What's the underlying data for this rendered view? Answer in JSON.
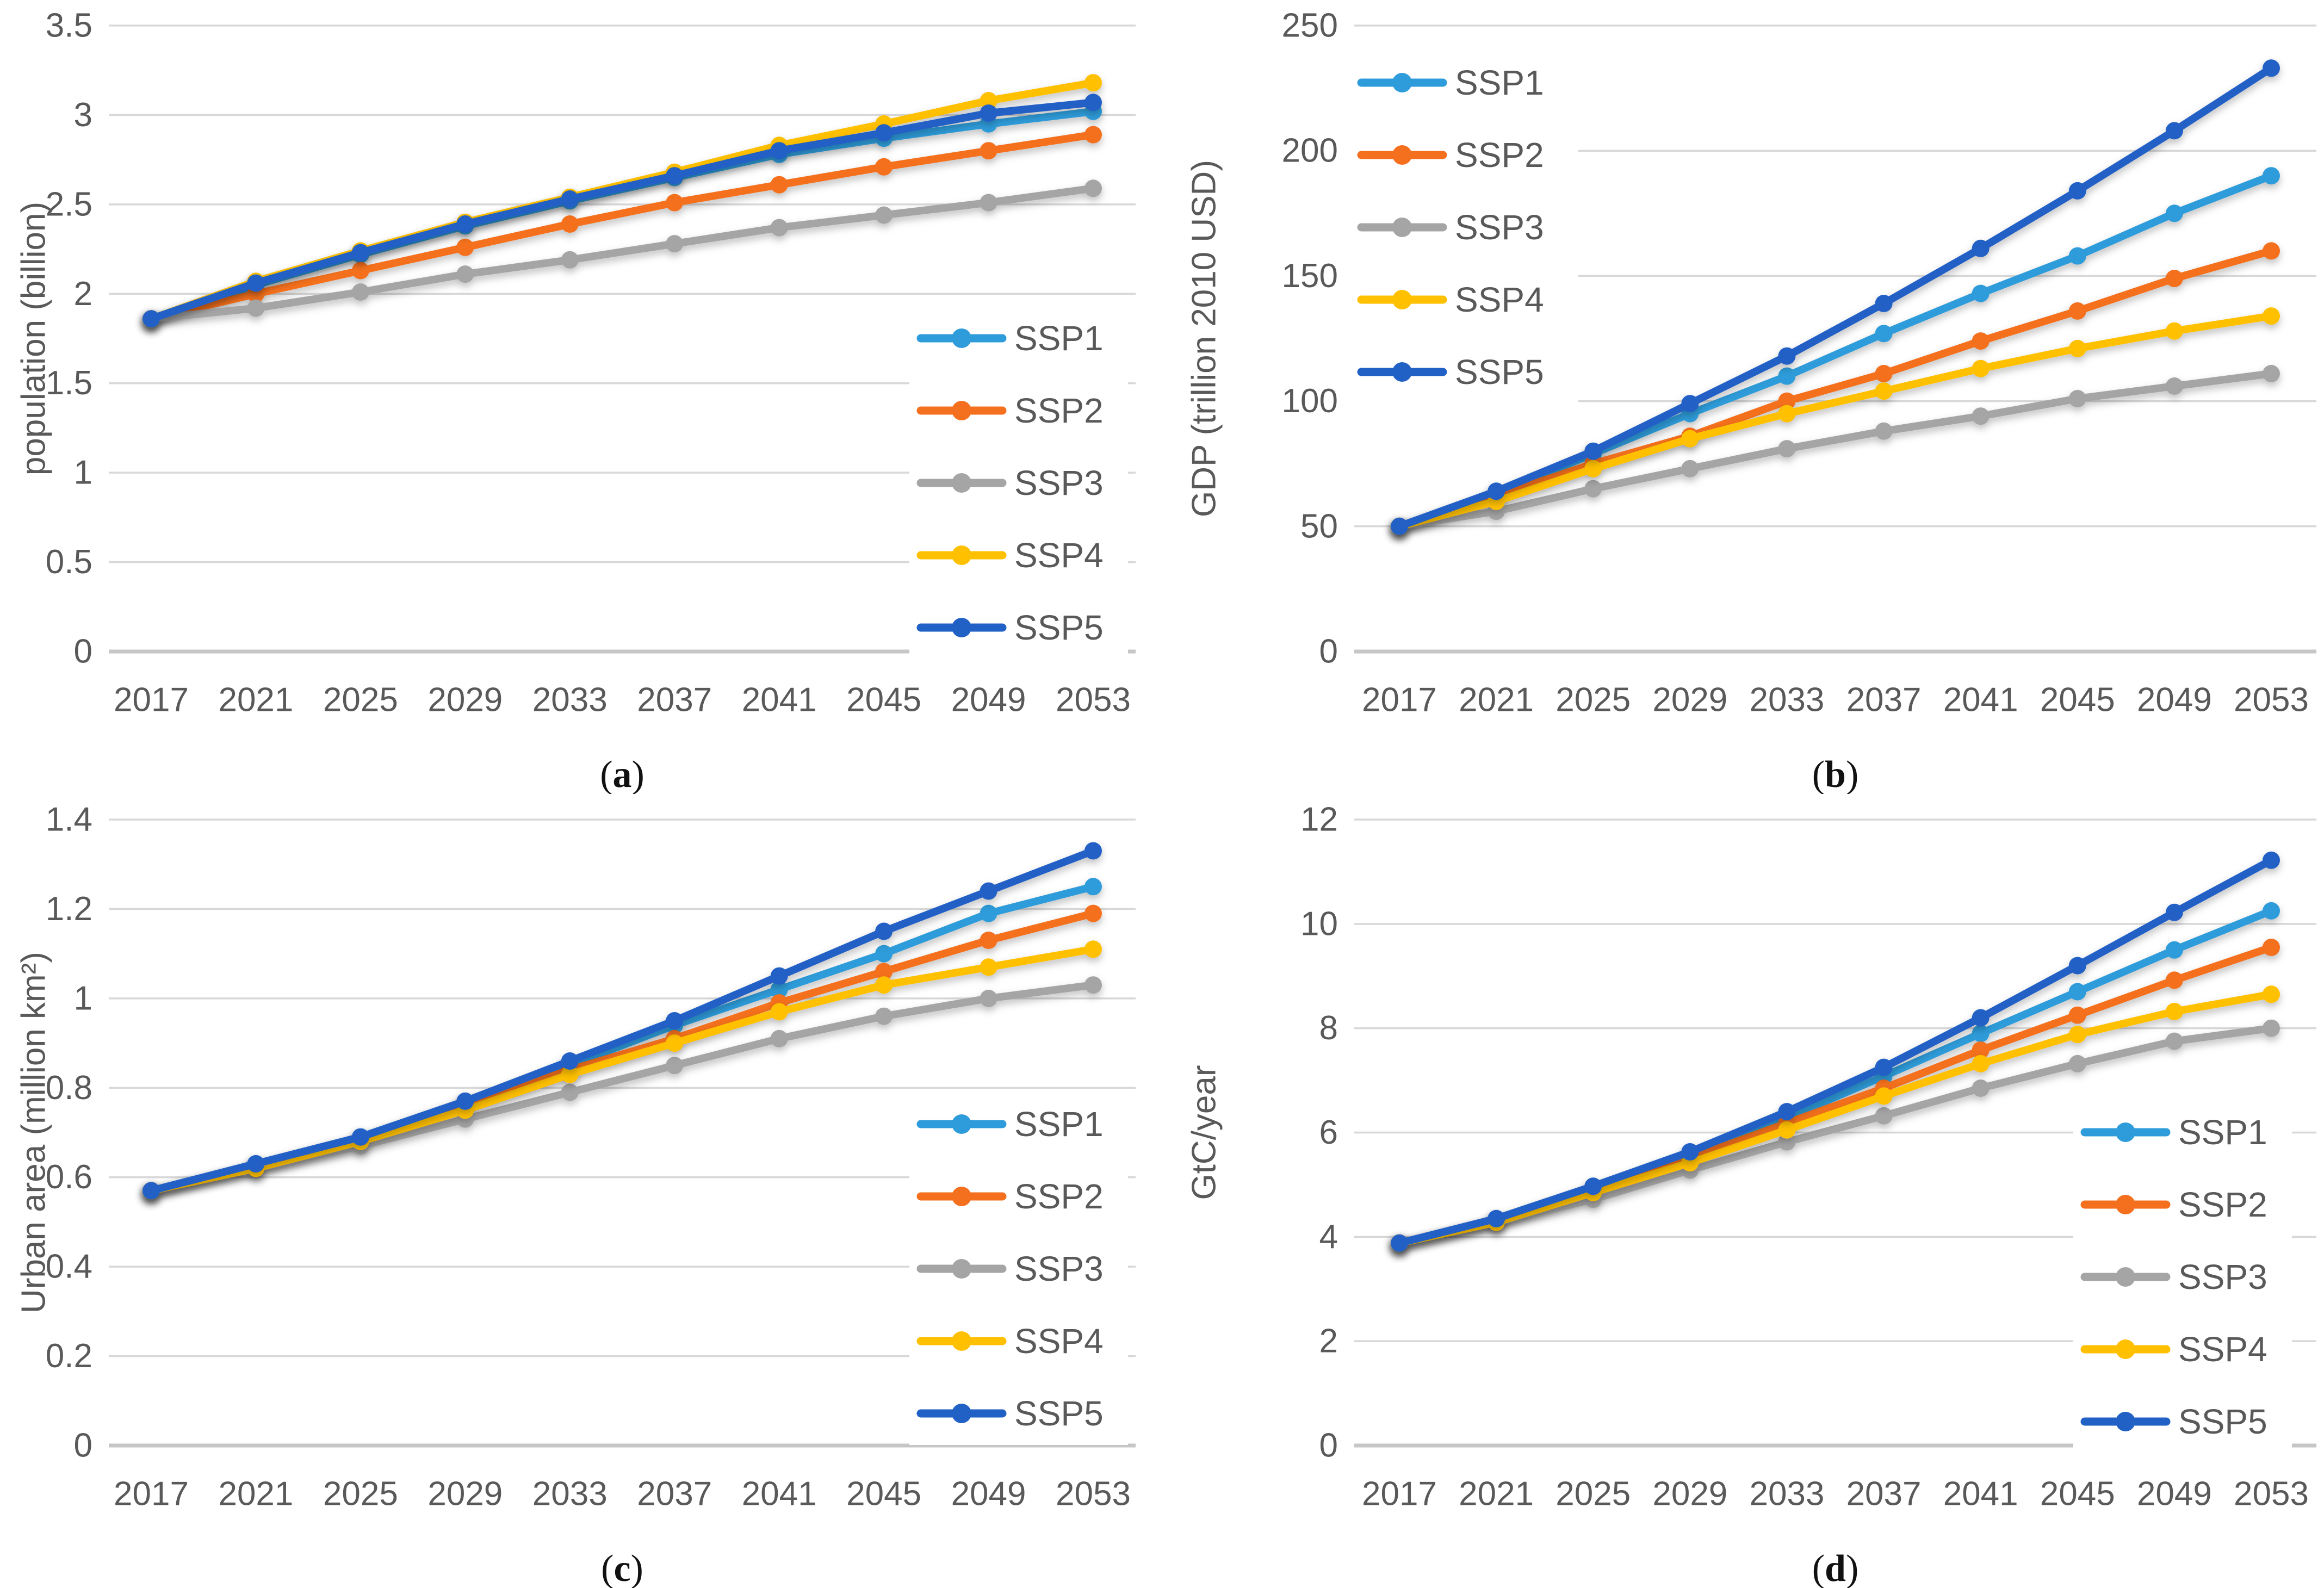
{
  "figure": {
    "background": "#FFFFFF",
    "tick_text_color": "#595959",
    "axis_title_color": "#595959",
    "gridline_color": "#D8D8D8",
    "axisline_color": "#C6C6C6",
    "panel_caption_color": "#111111",
    "series_colors": {
      "SSP1": "#2E9CDA",
      "SSP2": "#F4701F",
      "SSP3": "#A5A5A5",
      "SSP4": "#FFC000",
      "SSP5": "#2161C6"
    },
    "legend_labels": [
      "SSP1",
      "SSP2",
      "SSP3",
      "SSP4",
      "SSP5"
    ]
  },
  "chart_data": [
    {
      "id": "a",
      "type": "line",
      "panel_label": "(a)",
      "title": "",
      "xlabel": "",
      "ylabel": "population (billion)",
      "ylim": [
        0,
        3.5
      ],
      "ytick_values": [
        0,
        0.5,
        1,
        1.5,
        2,
        2.5,
        3,
        3.5
      ],
      "yticks": [
        "0",
        "0.5",
        "1",
        "1.5",
        "2",
        "2.5",
        "3",
        "3.5"
      ],
      "x": [
        2017,
        2021,
        2025,
        2029,
        2033,
        2037,
        2041,
        2045,
        2049,
        2053
      ],
      "grid": "horizontal",
      "legend_position": "middle-right",
      "series": [
        {
          "name": "SSP1",
          "values": [
            1.86,
            2.05,
            2.22,
            2.38,
            2.52,
            2.65,
            2.78,
            2.87,
            2.95,
            3.02
          ]
        },
        {
          "name": "SSP2",
          "values": [
            1.86,
            2.0,
            2.13,
            2.26,
            2.39,
            2.51,
            2.61,
            2.71,
            2.8,
            2.89
          ]
        },
        {
          "name": "SSP3",
          "values": [
            1.86,
            1.92,
            2.01,
            2.11,
            2.19,
            2.28,
            2.37,
            2.44,
            2.51,
            2.59
          ]
        },
        {
          "name": "SSP4",
          "values": [
            1.86,
            2.07,
            2.24,
            2.4,
            2.54,
            2.68,
            2.83,
            2.95,
            3.08,
            3.18
          ]
        },
        {
          "name": "SSP5",
          "values": [
            1.86,
            2.06,
            2.23,
            2.39,
            2.53,
            2.66,
            2.8,
            2.9,
            3.01,
            3.07
          ]
        }
      ]
    },
    {
      "id": "b",
      "type": "line",
      "panel_label": "(b)",
      "title": "",
      "xlabel": "",
      "ylabel": "GDP (trillion 2010 USD)",
      "ylim": [
        0,
        250
      ],
      "ytick_values": [
        0,
        50,
        100,
        150,
        200,
        250
      ],
      "yticks": [
        "0",
        "50",
        "100",
        "150",
        "200",
        "250"
      ],
      "x": [
        2017,
        2021,
        2025,
        2029,
        2033,
        2037,
        2041,
        2045,
        2049,
        2053
      ],
      "grid": "horizontal",
      "legend_position": "top-left",
      "series": [
        {
          "name": "SSP1",
          "values": [
            50,
            63,
            79,
            95,
            110,
            127,
            143,
            158,
            175,
            190
          ]
        },
        {
          "name": "SSP2",
          "values": [
            50,
            62,
            75,
            86,
            100,
            111,
            124,
            136,
            149,
            160
          ]
        },
        {
          "name": "SSP3",
          "values": [
            50,
            56,
            65,
            73,
            81,
            88,
            94,
            101,
            106,
            111
          ]
        },
        {
          "name": "SSP4",
          "values": [
            50,
            60,
            73,
            85,
            95,
            104,
            113,
            121,
            128,
            134
          ]
        },
        {
          "name": "SSP5",
          "values": [
            50,
            64,
            80,
            99,
            118,
            139,
            161,
            184,
            208,
            233
          ]
        }
      ]
    },
    {
      "id": "c",
      "type": "line",
      "panel_label": "(c)",
      "title": "",
      "xlabel": "",
      "ylabel": "Urban area (million km²)",
      "ylim": [
        0,
        1.4
      ],
      "ytick_values": [
        0,
        0.2,
        0.4,
        0.6,
        0.8,
        1,
        1.2,
        1.4
      ],
      "yticks": [
        "0",
        "0.2",
        "0.4",
        "0.6",
        "0.8",
        "1",
        "1.2",
        "1.4"
      ],
      "x": [
        2017,
        2021,
        2025,
        2029,
        2033,
        2037,
        2041,
        2045,
        2049,
        2053
      ],
      "grid": "horizontal",
      "legend_position": "middle-right",
      "series": [
        {
          "name": "SSP1",
          "values": [
            0.57,
            0.63,
            0.69,
            0.77,
            0.85,
            0.94,
            1.02,
            1.1,
            1.19,
            1.25
          ]
        },
        {
          "name": "SSP2",
          "values": [
            0.57,
            0.62,
            0.68,
            0.76,
            0.84,
            0.91,
            0.99,
            1.06,
            1.13,
            1.19
          ]
        },
        {
          "name": "SSP3",
          "values": [
            0.57,
            0.62,
            0.67,
            0.73,
            0.79,
            0.85,
            0.91,
            0.96,
            1.0,
            1.03
          ]
        },
        {
          "name": "SSP4",
          "values": [
            0.57,
            0.62,
            0.68,
            0.75,
            0.83,
            0.9,
            0.97,
            1.03,
            1.07,
            1.11
          ]
        },
        {
          "name": "SSP5",
          "values": [
            0.57,
            0.63,
            0.69,
            0.77,
            0.86,
            0.95,
            1.05,
            1.15,
            1.24,
            1.33
          ]
        }
      ]
    },
    {
      "id": "d",
      "type": "line",
      "panel_label": "(d)",
      "title": "",
      "xlabel": "",
      "ylabel": "GtC/year",
      "ylim": [
        0,
        12
      ],
      "ytick_values": [
        0,
        2,
        4,
        6,
        8,
        10,
        12
      ],
      "yticks": [
        "0",
        "2",
        "4",
        "6",
        "8",
        "10",
        "12"
      ],
      "x": [
        2017,
        2021,
        2025,
        2029,
        2033,
        2037,
        2041,
        2045,
        2049,
        2053
      ],
      "grid": "horizontal",
      "legend_position": "middle-right",
      "series": [
        {
          "name": "SSP1",
          "values": [
            3.88,
            4.33,
            4.92,
            5.58,
            6.28,
            7.08,
            7.9,
            8.7,
            9.5,
            10.25
          ]
        },
        {
          "name": "SSP2",
          "values": [
            3.88,
            4.3,
            4.86,
            5.5,
            6.18,
            6.85,
            7.58,
            8.25,
            8.92,
            9.55
          ]
        },
        {
          "name": "SSP3",
          "values": [
            3.88,
            4.28,
            4.72,
            5.28,
            5.82,
            6.32,
            6.85,
            7.32,
            7.75,
            8.0
          ]
        },
        {
          "name": "SSP4",
          "values": [
            3.88,
            4.28,
            4.85,
            5.42,
            6.05,
            6.7,
            7.32,
            7.88,
            8.32,
            8.65
          ]
        },
        {
          "name": "SSP5",
          "values": [
            3.88,
            4.35,
            4.97,
            5.63,
            6.4,
            7.25,
            8.2,
            9.2,
            10.22,
            11.22
          ]
        }
      ]
    }
  ]
}
